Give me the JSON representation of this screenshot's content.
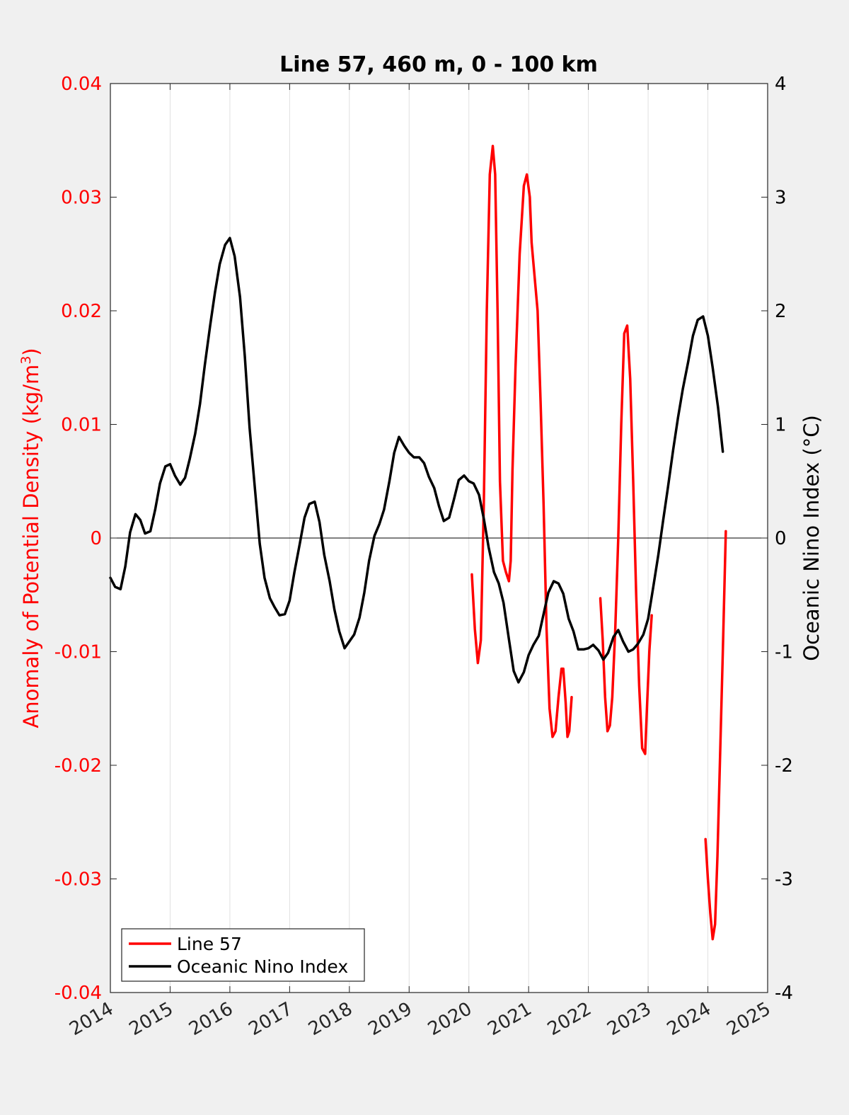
{
  "chart_data": {
    "type": "line",
    "title": "Line 57, 460 m, 0 - 100 km",
    "xlim": [
      2014,
      2025
    ],
    "x_ticks": [
      "2014",
      "2015",
      "2016",
      "2017",
      "2018",
      "2019",
      "2020",
      "2021",
      "2022",
      "2023",
      "2024",
      "2025"
    ],
    "ylabel_left": "Anomaly of Potential Density (kg/m",
    "ylabel_left_sup": "3",
    "ylabel_left_close": ")",
    "ylim_left": [
      -0.04,
      0.04
    ],
    "y_ticks_left": [
      "0.04",
      "0.03",
      "0.02",
      "0.01",
      "0",
      "-0.01",
      "-0.02",
      "-0.03",
      "-0.04"
    ],
    "ylabel_right": "Oceanic Nino Index (°C)",
    "ylim_right": [
      -4,
      4
    ],
    "y_ticks_right": [
      "4",
      "3",
      "2",
      "1",
      "0",
      "-1",
      "-2",
      "-3",
      "-4"
    ],
    "grid": "vertical",
    "zero_line": true,
    "legend_position": "bottom-left",
    "colors": {
      "left_axis": "#ff0000",
      "right_axis": "#000000",
      "line57": "#ff0000",
      "oni": "#000000",
      "background": "#f0f0f0",
      "plot_bg": "#ffffff",
      "grid": "#e0e0e0"
    },
    "series": [
      {
        "name": "Line 57",
        "axis": "left",
        "color": "#ff0000",
        "segments": [
          {
            "x": [
              2020.05,
              2020.1,
              2020.15,
              2020.2,
              2020.25,
              2020.3,
              2020.35,
              2020.4,
              2020.44,
              2020.48,
              2020.52,
              2020.57,
              2020.62,
              2020.67,
              2020.7,
              2020.73,
              2020.78,
              2020.85,
              2020.92,
              2020.97,
              2021.02,
              2021.05,
              2021.1,
              2021.15,
              2021.2,
              2021.25,
              2021.3,
              2021.35,
              2021.4,
              2021.45,
              2021.5,
              2021.55,
              2021.58,
              2021.62,
              2021.65,
              2021.68,
              2021.72
            ],
            "y": [
              -0.0032,
              -0.008,
              -0.011,
              -0.009,
              0.003,
              0.02,
              0.032,
              0.0345,
              0.032,
              0.02,
              0.005,
              -0.002,
              -0.003,
              -0.0038,
              -0.002,
              0.006,
              0.015,
              0.025,
              0.031,
              0.032,
              0.03,
              0.026,
              0.023,
              0.02,
              0.012,
              0.003,
              -0.008,
              -0.015,
              -0.0175,
              -0.017,
              -0.014,
              -0.0115,
              -0.0115,
              -0.0145,
              -0.0175,
              -0.017,
              -0.014
            ]
          },
          {
            "x": [
              2022.2,
              2022.24,
              2022.28,
              2022.32,
              2022.36,
              2022.4,
              2022.45,
              2022.5,
              2022.55,
              2022.6,
              2022.65,
              2022.7,
              2022.75,
              2022.8,
              2022.85,
              2022.9,
              2022.95,
              2022.98,
              2023.02,
              2023.06
            ],
            "y": [
              -0.0053,
              -0.009,
              -0.014,
              -0.017,
              -0.0165,
              -0.014,
              -0.008,
              0.0,
              0.01,
              0.018,
              0.0187,
              0.014,
              0.005,
              -0.005,
              -0.013,
              -0.0185,
              -0.019,
              -0.015,
              -0.01,
              -0.0068
            ]
          },
          {
            "x": [
              2023.96,
              2024.0,
              2024.04,
              2024.08,
              2024.12,
              2024.16,
              2024.2,
              2024.25,
              2024.3
            ],
            "y": [
              -0.0265,
              -0.03,
              -0.033,
              -0.0353,
              -0.034,
              -0.028,
              -0.02,
              -0.01,
              0.0006
            ]
          }
        ]
      },
      {
        "name": "Oceanic Nino Index",
        "axis": "right",
        "color": "#000000",
        "segments": [
          {
            "x": [
              2014.0,
              2014.08,
              2014.17,
              2014.25,
              2014.33,
              2014.42,
              2014.5,
              2014.58,
              2014.67,
              2014.75,
              2014.83,
              2014.92,
              2015.0,
              2015.08,
              2015.17,
              2015.25,
              2015.33,
              2015.42,
              2015.5,
              2015.58,
              2015.67,
              2015.75,
              2015.83,
              2015.92,
              2016.0,
              2016.08,
              2016.17,
              2016.25,
              2016.33,
              2016.42,
              2016.5,
              2016.58,
              2016.67,
              2016.75,
              2016.83,
              2016.92,
              2017.0,
              2017.08,
              2017.17,
              2017.25,
              2017.33,
              2017.42,
              2017.5,
              2017.58,
              2017.67,
              2017.75,
              2017.83,
              2017.92,
              2018.0,
              2018.08,
              2018.17,
              2018.25,
              2018.33,
              2018.42,
              2018.5,
              2018.58,
              2018.67,
              2018.75,
              2018.83,
              2018.92,
              2019.0,
              2019.08,
              2019.17,
              2019.25,
              2019.33,
              2019.42,
              2019.5,
              2019.58,
              2019.67,
              2019.75,
              2019.83,
              2019.92,
              2020.0,
              2020.08,
              2020.17,
              2020.25,
              2020.33,
              2020.42,
              2020.5,
              2020.58,
              2020.67,
              2020.75,
              2020.83,
              2020.92,
              2021.0,
              2021.08,
              2021.17,
              2021.25,
              2021.33,
              2021.42,
              2021.5,
              2021.58,
              2021.67,
              2021.75,
              2021.83,
              2021.92,
              2022.0,
              2022.08,
              2022.17,
              2022.25,
              2022.33,
              2022.42,
              2022.5,
              2022.58,
              2022.67,
              2022.75,
              2022.83,
              2022.92,
              2023.0,
              2023.08,
              2023.17,
              2023.25,
              2023.33,
              2023.42,
              2023.5,
              2023.58,
              2023.67,
              2023.75,
              2023.83,
              2023.92,
              2024.0,
              2024.08,
              2024.17,
              2024.25
            ],
            "y": [
              -0.35,
              -0.43,
              -0.45,
              -0.25,
              0.05,
              0.21,
              0.16,
              0.04,
              0.06,
              0.25,
              0.48,
              0.63,
              0.65,
              0.55,
              0.47,
              0.53,
              0.7,
              0.92,
              1.18,
              1.52,
              1.87,
              2.16,
              2.41,
              2.58,
              2.64,
              2.48,
              2.12,
              1.6,
              0.97,
              0.43,
              -0.05,
              -0.35,
              -0.53,
              -0.61,
              -0.68,
              -0.67,
              -0.55,
              -0.3,
              -0.05,
              0.18,
              0.3,
              0.32,
              0.14,
              -0.15,
              -0.38,
              -0.63,
              -0.82,
              -0.97,
              -0.91,
              -0.85,
              -0.7,
              -0.48,
              -0.2,
              0.02,
              0.12,
              0.25,
              0.5,
              0.75,
              0.89,
              0.81,
              0.75,
              0.71,
              0.71,
              0.66,
              0.54,
              0.44,
              0.28,
              0.15,
              0.18,
              0.34,
              0.51,
              0.55,
              0.5,
              0.48,
              0.38,
              0.17,
              -0.08,
              -0.3,
              -0.4,
              -0.57,
              -0.89,
              -1.17,
              -1.27,
              -1.18,
              -1.03,
              -0.94,
              -0.86,
              -0.67,
              -0.48,
              -0.38,
              -0.4,
              -0.49,
              -0.71,
              -0.82,
              -0.98,
              -0.98,
              -0.97,
              -0.94,
              -0.99,
              -1.07,
              -1.01,
              -0.87,
              -0.81,
              -0.91,
              -1.0,
              -0.98,
              -0.93,
              -0.85,
              -0.71,
              -0.45,
              -0.15,
              0.15,
              0.44,
              0.78,
              1.06,
              1.31,
              1.55,
              1.78,
              1.92,
              1.95,
              1.78,
              1.5,
              1.15,
              0.76
            ]
          }
        ]
      }
    ]
  }
}
